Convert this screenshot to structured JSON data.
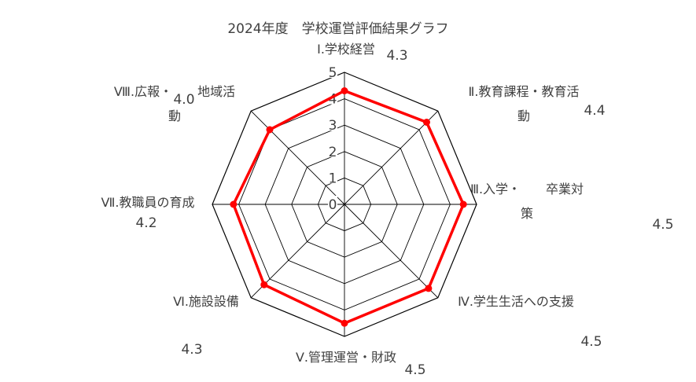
{
  "chart_data": {
    "type": "radar",
    "title": "2024年度　学校運営評価結果グラフ",
    "rlim": [
      0,
      5
    ],
    "ticks": [
      "0",
      "1",
      "2",
      "3",
      "4",
      "5"
    ],
    "grid": true,
    "legend": "none",
    "categories": [
      "Ⅰ.学校経営",
      "Ⅱ.教育課程・教育活動",
      "Ⅲ.入学・卒業対策",
      "Ⅳ.学生生活への支援",
      "Ⅴ.管理運営・財政",
      "Ⅵ.施設設備",
      "Ⅶ.教職員の育成",
      "Ⅷ.広報・地域活動"
    ],
    "category_lines": [
      [
        "Ⅰ.学校経営"
      ],
      [
        "Ⅱ.教育課程・教育活",
        "動"
      ],
      [
        "Ⅲ.入学・　　卒業対",
        "策"
      ],
      [
        "Ⅳ.学生生活への支援"
      ],
      [
        "Ⅴ.管理運営・財政"
      ],
      [
        "Ⅵ.施設設備"
      ],
      [
        "Ⅶ.教職員の育成"
      ],
      [
        "Ⅷ.広報・　　地域活",
        "動"
      ]
    ],
    "series": [
      {
        "values": [
          4.3,
          4.4,
          4.5,
          4.5,
          4.5,
          4.3,
          4.2,
          4.0
        ]
      }
    ],
    "value_labels": [
      "4.3",
      "4.4",
      "4.5",
      "4.5",
      "4.5",
      "4.3",
      "4.2",
      "4.0"
    ],
    "colors": {
      "series": "#ff0000",
      "grid": "#000000",
      "text": "#404040"
    }
  }
}
